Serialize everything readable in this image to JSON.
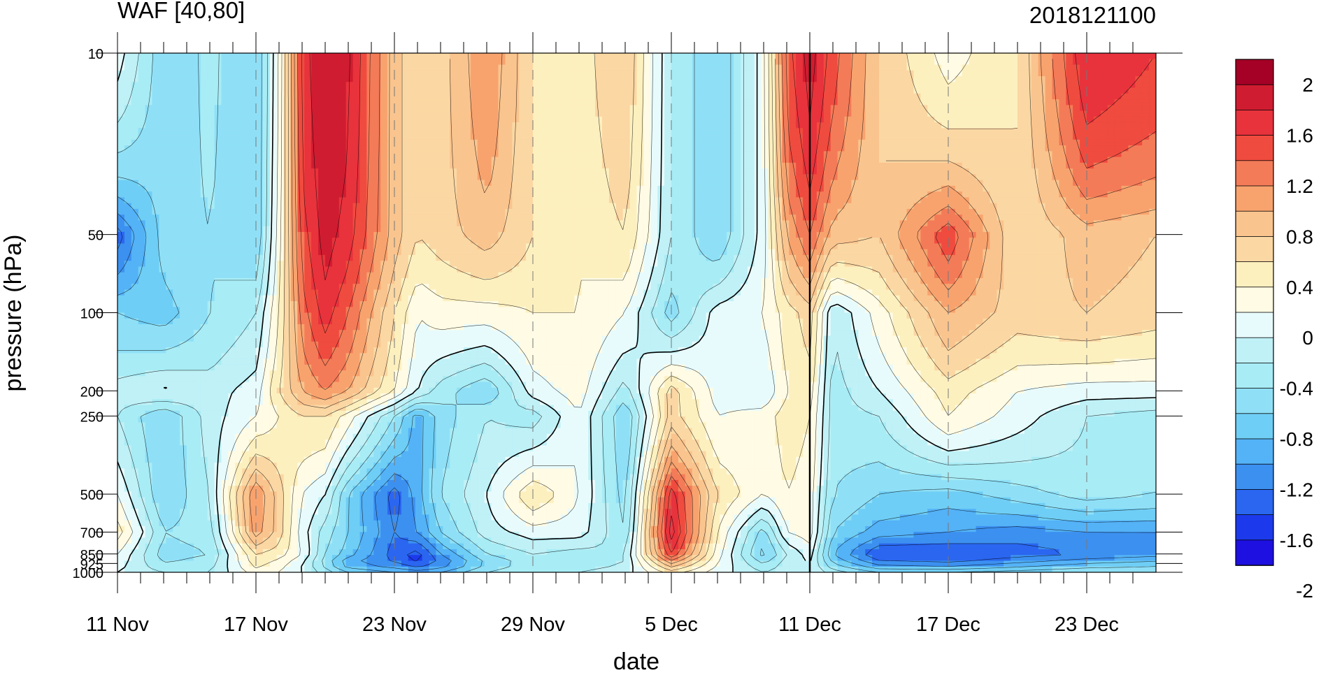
{
  "chart_data": {
    "type": "heatmap",
    "title": "WAF [40,80]",
    "subtitle": "2018121100",
    "xlabel": "date",
    "ylabel": "pressure (hPa)",
    "x_tick_labels": [
      "11 Nov",
      "17 Nov",
      "23 Nov",
      "29 Nov",
      "5 Dec",
      "11 Dec",
      "17 Dec",
      "23 Dec"
    ],
    "x_days": [
      0,
      6,
      12,
      18,
      24,
      30,
      36,
      42
    ],
    "x_range": [
      0,
      45
    ],
    "y_scale": "log",
    "y_ticks": [
      10,
      50,
      100,
      200,
      250,
      500,
      700,
      850,
      925,
      1000
    ],
    "y_tick_labels": [
      "10",
      "50",
      "100",
      "200",
      "250",
      "500",
      "700",
      "850",
      "925",
      "1000"
    ],
    "y_range": [
      1000,
      10
    ],
    "analysis_line_day": 30,
    "colorbar": {
      "labels": [
        "2",
        "1.6",
        "1.2",
        "0.8",
        "0.4",
        "0",
        "-0.4",
        "-0.8",
        "-1.2",
        "-1.6",
        "-2"
      ],
      "levels": [
        2.2,
        2.0,
        1.8,
        1.6,
        1.4,
        1.2,
        1.0,
        0.8,
        0.6,
        0.4,
        0.2,
        0.0,
        -0.2,
        -0.4,
        -0.6,
        -0.8,
        -1.0,
        -1.2,
        -1.4,
        -1.6,
        -1.8,
        -2.0,
        -2.2
      ],
      "colors": [
        "#a50026",
        "#d01c30",
        "#e8323c",
        "#f04b3f",
        "#f47b58",
        "#f8a36e",
        "#fac48e",
        "#fbd7a3",
        "#fdf0bf",
        "#fffbe4",
        "#e8fbfc",
        "#bff1f7",
        "#a8ecf5",
        "#8fe0f7",
        "#6fcef5",
        "#54b2f7",
        "#3c90f0",
        "#2a66f0",
        "#1c3aec",
        "#1e10e0"
      ]
    },
    "field": {
      "pressure_levels": [
        10,
        50,
        100,
        200,
        250,
        500,
        700,
        850,
        925,
        1000
      ],
      "days": [
        0,
        2,
        4,
        6,
        7,
        8,
        9,
        10,
        12,
        13,
        14,
        16,
        18,
        20,
        22,
        24,
        26,
        28,
        29,
        30,
        31,
        33,
        36,
        39,
        42,
        45
      ],
      "values": [
        [
          0.1,
          -0.55,
          -0.35,
          -0.6,
          0.2,
          1.7,
          2.0,
          1.85,
          0.9,
          0.6,
          0.7,
          1.2,
          0.6,
          0.5,
          0.8,
          -0.2,
          -0.6,
          0.1,
          1.5,
          1.9,
          1.5,
          0.8,
          0.3,
          0.6,
          1.8,
          1.6
        ],
        [
          -1.3,
          -0.5,
          -0.4,
          -0.6,
          0.3,
          1.5,
          1.9,
          1.7,
          0.9,
          0.6,
          0.7,
          0.9,
          0.6,
          0.4,
          0.6,
          -0.2,
          -0.6,
          0.1,
          1.0,
          1.4,
          0.9,
          0.8,
          1.55,
          0.6,
          0.9,
          0.8
        ],
        [
          -0.6,
          -0.7,
          -0.4,
          -0.2,
          0.4,
          1.3,
          1.7,
          1.4,
          0.6,
          0.2,
          0.3,
          0.3,
          0.4,
          0.4,
          0.2,
          -0.5,
          0.1,
          0.2,
          0.5,
          0.7,
          -0.2,
          0.3,
          1.0,
          0.7,
          0.8,
          0.7
        ],
        [
          -0.1,
          0.05,
          -0.1,
          0.1,
          0.6,
          1.0,
          1.2,
          1.0,
          0.4,
          0.0,
          -0.3,
          -0.6,
          0.1,
          0.3,
          -0.3,
          0.7,
          0.1,
          0.0,
          0.4,
          0.5,
          -0.3,
          0.0,
          0.5,
          0.2,
          0.1,
          0.1
        ],
        [
          -0.2,
          -0.6,
          -0.1,
          0.2,
          0.4,
          0.6,
          0.6,
          0.3,
          -0.4,
          -0.9,
          -0.5,
          -0.2,
          -0.3,
          0.2,
          -0.6,
          0.7,
          0.2,
          0.3,
          0.5,
          0.4,
          -0.3,
          -0.2,
          0.4,
          0.1,
          -0.2,
          -0.3
        ],
        [
          0.2,
          -0.6,
          -0.2,
          1.2,
          0.7,
          0.2,
          0.0,
          -0.6,
          -1.3,
          -0.9,
          -0.4,
          0.0,
          0.6,
          0.2,
          -0.5,
          1.7,
          0.6,
          0.2,
          0.4,
          0.3,
          -0.4,
          -0.6,
          -0.7,
          -0.5,
          -0.3,
          -0.4
        ],
        [
          0.5,
          -0.4,
          -0.3,
          1.1,
          0.7,
          0.1,
          -0.3,
          -0.6,
          -1.2,
          -1.0,
          -0.6,
          -0.1,
          0.1,
          0.1,
          -0.4,
          1.9,
          0.4,
          -0.5,
          0.2,
          0.3,
          -0.6,
          -0.9,
          -1.0,
          -1.1,
          -1.0,
          -1.0
        ],
        [
          0.2,
          -0.5,
          -0.4,
          0.6,
          0.5,
          0.2,
          -0.4,
          -0.7,
          -1.3,
          -1.5,
          -1.0,
          -0.4,
          -0.2,
          -0.3,
          -0.2,
          1.6,
          0.3,
          -0.7,
          -0.2,
          0.1,
          -0.8,
          -1.4,
          -1.4,
          -1.3,
          -1.2,
          -1.1
        ],
        [
          0.1,
          -0.4,
          -0.3,
          0.5,
          0.3,
          0.0,
          -0.5,
          -1.0,
          -1.2,
          -1.4,
          -1.2,
          -0.6,
          -0.3,
          -0.3,
          -0.2,
          1.0,
          0.2,
          -0.4,
          -0.1,
          0.0,
          -0.6,
          -1.1,
          -1.2,
          -1.0,
          -0.8,
          -0.7
        ],
        [
          0.0,
          -0.2,
          -0.2,
          0.3,
          0.2,
          0.0,
          -0.3,
          -0.6,
          -0.8,
          -0.9,
          -0.8,
          -0.4,
          -0.2,
          -0.2,
          -0.1,
          0.5,
          0.1,
          -0.2,
          -0.1,
          0.0,
          -0.3,
          -0.6,
          -0.6,
          -0.5,
          -0.4,
          -0.4
        ]
      ]
    }
  }
}
